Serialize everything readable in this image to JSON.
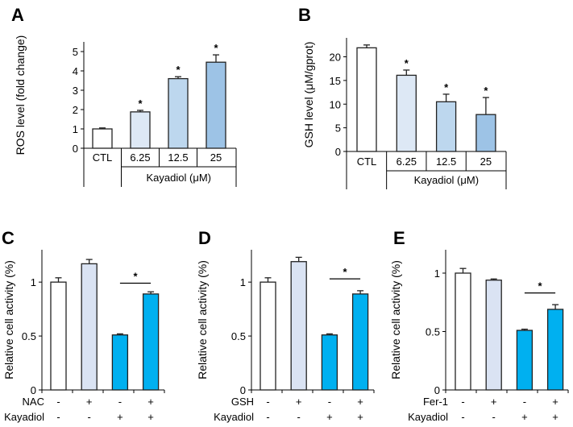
{
  "chart_data": [
    {
      "type": "bar",
      "panel_label": "A",
      "ylabel": "ROS level (fold change)",
      "ylim": [
        0,
        5.5
      ],
      "yticks": [
        0,
        1,
        2,
        3,
        4,
        5
      ],
      "categories": [
        "CTL",
        "6.25",
        "12.5",
        "25"
      ],
      "group_label": "Kayadiol (μM)",
      "values": [
        1.0,
        1.88,
        3.6,
        4.45
      ],
      "errors": [
        0.05,
        0.08,
        0.1,
        0.38
      ],
      "significant": [
        false,
        true,
        true,
        true
      ],
      "colors": [
        "#ffffff",
        "#dde8f5",
        "#bdd7ee",
        "#9dc3e6"
      ]
    },
    {
      "type": "bar",
      "panel_label": "B",
      "ylabel": "GSH level (μM/gprot)",
      "ylim": [
        0,
        24
      ],
      "yticks": [
        0,
        5,
        10,
        15,
        20
      ],
      "categories": [
        "CTL",
        "6.25",
        "12.5",
        "25"
      ],
      "group_label": "Kayadiol (μM)",
      "values": [
        21.9,
        16.1,
        10.5,
        7.8
      ],
      "errors": [
        0.6,
        1.1,
        1.6,
        3.6
      ],
      "significant": [
        false,
        true,
        true,
        true
      ],
      "colors": [
        "#ffffff",
        "#dde8f5",
        "#bdd7ee",
        "#9dc3e6"
      ]
    },
    {
      "type": "bar",
      "panel_label": "C",
      "ylabel": "Relative cell activity (%)",
      "ylim": [
        0,
        1.3
      ],
      "yticks": [
        0,
        0.5,
        1
      ],
      "rows": [
        {
          "label": "NAC",
          "signs": [
            "-",
            "+",
            "-",
            "+"
          ]
        },
        {
          "label": "Kayadiol",
          "signs": [
            "-",
            "-",
            "+",
            "+"
          ]
        }
      ],
      "values": [
        1.0,
        1.17,
        0.51,
        0.89
      ],
      "errors": [
        0.04,
        0.04,
        0.01,
        0.02
      ],
      "significance_bracket": {
        "between": [
          3,
          4
        ],
        "level": 0.99,
        "mark": "*"
      },
      "colors": [
        "#ffffff",
        "#dae3f3",
        "#00b0f0",
        "#00b0f0"
      ]
    },
    {
      "type": "bar",
      "panel_label": "D",
      "ylabel": "Relative cell activity (%)",
      "ylim": [
        0,
        1.3
      ],
      "yticks": [
        0,
        0.5,
        1
      ],
      "rows": [
        {
          "label": "GSH",
          "signs": [
            "-",
            "+",
            "-",
            "+"
          ]
        },
        {
          "label": "Kayadiol",
          "signs": [
            "-",
            "-",
            "+",
            "+"
          ]
        }
      ],
      "values": [
        1.0,
        1.19,
        0.51,
        0.89
      ],
      "errors": [
        0.04,
        0.04,
        0.01,
        0.03
      ],
      "significance_bracket": {
        "between": [
          3,
          4
        ],
        "level": 1.03,
        "mark": "*"
      },
      "colors": [
        "#ffffff",
        "#dae3f3",
        "#00b0f0",
        "#00b0f0"
      ]
    },
    {
      "type": "bar",
      "panel_label": "E",
      "ylabel": "Relative cell activity (%)",
      "ylim": [
        0,
        1.2
      ],
      "yticks": [
        0,
        0.5,
        1
      ],
      "rows": [
        {
          "label": "Fer-1",
          "signs": [
            "-",
            "+",
            "-",
            "+"
          ]
        },
        {
          "label": "Kayadiol",
          "signs": [
            "-",
            "-",
            "+",
            "+"
          ]
        }
      ],
      "values": [
        1.0,
        0.94,
        0.51,
        0.69
      ],
      "errors": [
        0.04,
        0.01,
        0.01,
        0.04
      ],
      "significance_bracket": {
        "between": [
          3,
          4
        ],
        "level": 0.83,
        "mark": "*"
      },
      "colors": [
        "#ffffff",
        "#dae3f3",
        "#00b0f0",
        "#00b0f0"
      ]
    }
  ]
}
